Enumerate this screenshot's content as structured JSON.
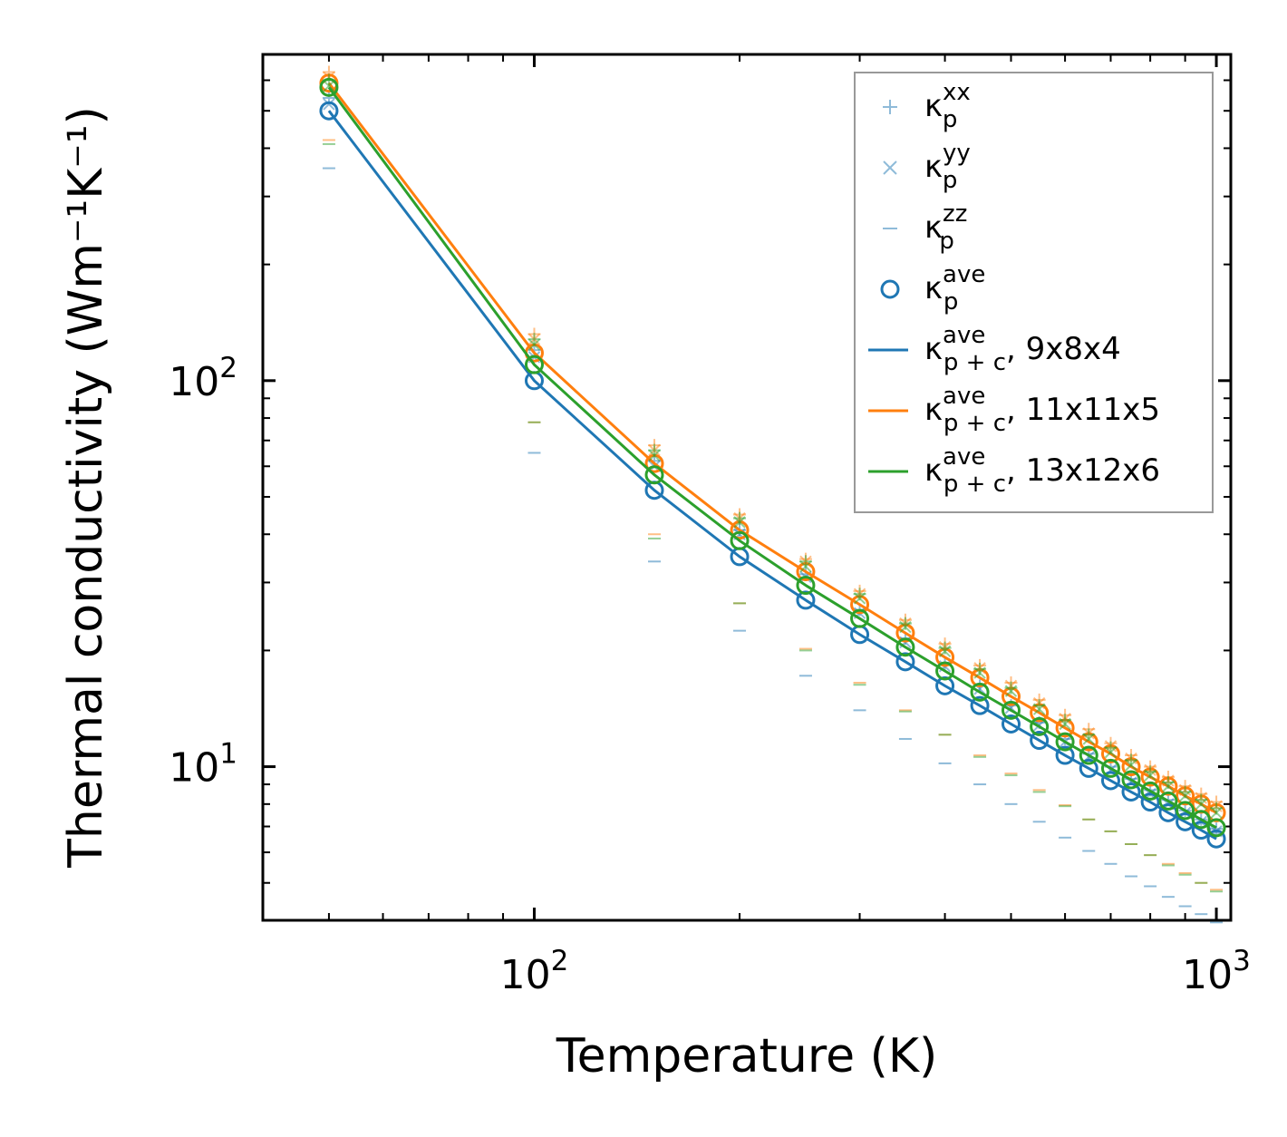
{
  "chart_data": {
    "type": "scatter",
    "title": "",
    "xlabel": "Temperature (K)",
    "ylabel": "Thermal conductivity (Wm⁻¹K⁻¹)",
    "xscale": "log",
    "yscale": "log",
    "xlim": [
      40,
      1050
    ],
    "ylim": [
      4.0,
      700
    ],
    "xticks": [
      {
        "value": 100,
        "base": "10",
        "exp": "2"
      },
      {
        "value": 1000,
        "base": "10",
        "exp": "3"
      }
    ],
    "yticks": [
      {
        "value": 10,
        "base": "10",
        "exp": "1"
      },
      {
        "value": 100,
        "base": "10",
        "exp": "2"
      }
    ],
    "grid": false,
    "legend_position": "top-right",
    "x": [
      50,
      100,
      150,
      200,
      250,
      300,
      350,
      400,
      450,
      500,
      550,
      600,
      650,
      700,
      750,
      800,
      850,
      900,
      950,
      1000
    ],
    "series": [
      {
        "name": "9x8x4",
        "color": "#1f77b4",
        "kxx": [
          540,
          120,
          62,
          41,
          31.5,
          25.5,
          21.5,
          18.5,
          16.2,
          14.4,
          13.0,
          11.8,
          10.8,
          10.0,
          9.3,
          8.7,
          8.2,
          7.7,
          7.3,
          6.9
        ],
        "kyy": [
          520,
          115,
          60,
          40,
          31,
          25,
          21,
          18.2,
          15.9,
          14.2,
          12.8,
          11.6,
          10.6,
          9.8,
          9.1,
          8.5,
          8.0,
          7.6,
          7.2,
          6.8
        ],
        "kzz": [
          355,
          65,
          34,
          22.5,
          17.2,
          14.0,
          11.8,
          10.2,
          9.0,
          8.0,
          7.2,
          6.55,
          6.05,
          5.6,
          5.2,
          4.9,
          4.6,
          4.35,
          4.15,
          3.95
        ],
        "kave": [
          500,
          100,
          52,
          35,
          27,
          22,
          18.7,
          16.2,
          14.4,
          12.9,
          11.7,
          10.7,
          9.9,
          9.2,
          8.6,
          8.1,
          7.6,
          7.2,
          6.85,
          6.5
        ],
        "kave_pc": [
          500,
          100,
          52,
          35,
          27,
          22,
          18.7,
          16.2,
          14.4,
          12.9,
          11.7,
          10.7,
          9.9,
          9.2,
          8.6,
          8.1,
          7.6,
          7.2,
          6.85,
          6.5
        ]
      },
      {
        "name": "11x11x5",
        "color": "#ff7f0e",
        "kxx": [
          630,
          132,
          68,
          45,
          34.5,
          28.5,
          24,
          20.8,
          18.3,
          16.5,
          14.9,
          13.6,
          12.5,
          11.5,
          10.7,
          10.0,
          9.4,
          8.9,
          8.5,
          8.1
        ],
        "kyy": [
          610,
          128,
          66,
          44,
          34,
          28,
          23.5,
          20.4,
          18.0,
          16.2,
          14.6,
          13.3,
          12.2,
          11.3,
          10.5,
          9.8,
          9.2,
          8.7,
          8.3,
          7.9
        ],
        "kzz": [
          420,
          78,
          40,
          26.5,
          20.2,
          16.5,
          14.0,
          12.1,
          10.7,
          9.6,
          8.7,
          7.95,
          7.3,
          6.8,
          6.3,
          5.9,
          5.6,
          5.3,
          5.0,
          4.8
        ],
        "kave": [
          590,
          118,
          61,
          41,
          32,
          26.3,
          22.2,
          19.2,
          17.0,
          15.2,
          13.8,
          12.6,
          11.6,
          10.8,
          10.0,
          9.4,
          8.9,
          8.4,
          8.0,
          7.6
        ],
        "kave_pc": [
          590,
          118,
          61,
          41,
          32,
          26.3,
          22.2,
          19.2,
          17.0,
          15.2,
          13.8,
          12.6,
          11.6,
          10.8,
          10.0,
          9.4,
          8.9,
          8.4,
          8.0,
          7.6
        ]
      },
      {
        "name": "13x12x6",
        "color": "#2ca02c",
        "kxx": [
          600,
          128,
          66,
          44,
          34,
          28,
          23.5,
          20.3,
          17.9,
          16.0,
          14.4,
          13.2,
          12.1,
          11.2,
          10.4,
          9.7,
          9.1,
          8.6,
          8.2,
          7.8
        ],
        "kyy": [
          580,
          124,
          64,
          43,
          33,
          27.3,
          23,
          19.9,
          17.5,
          15.7,
          14.1,
          12.9,
          11.8,
          10.9,
          10.1,
          9.5,
          8.9,
          8.4,
          8.0,
          7.6
        ],
        "kzz": [
          410,
          78,
          39,
          26.5,
          20,
          16.3,
          13.9,
          12.1,
          10.6,
          9.5,
          8.6,
          7.9,
          7.3,
          6.8,
          6.3,
          5.9,
          5.55,
          5.25,
          5.0,
          4.75
        ],
        "kave": [
          575,
          110,
          57,
          38.5,
          29.5,
          24.2,
          20.4,
          17.7,
          15.6,
          14.0,
          12.7,
          11.6,
          10.7,
          9.9,
          9.25,
          8.65,
          8.15,
          7.7,
          7.3,
          6.95
        ],
        "kave_pc": [
          575,
          110,
          57,
          38.5,
          29.5,
          24.2,
          20.4,
          17.7,
          15.6,
          14.0,
          12.7,
          11.6,
          10.7,
          9.9,
          9.25,
          8.65,
          8.15,
          7.7,
          7.3,
          6.95
        ]
      }
    ],
    "legend": [
      {
        "marker": "plus",
        "base": "κ",
        "sup": "xx",
        "sub": "p",
        "suffix": "",
        "color": "#1f77b4"
      },
      {
        "marker": "cross",
        "base": "κ",
        "sup": "yy",
        "sub": "p",
        "suffix": "",
        "color": "#1f77b4"
      },
      {
        "marker": "dash",
        "base": "κ",
        "sup": "zz",
        "sub": "p",
        "suffix": "",
        "color": "#1f77b4"
      },
      {
        "marker": "circle",
        "base": "κ",
        "sup": "ave",
        "sub": "p",
        "suffix": "",
        "color": "#1f77b4"
      },
      {
        "marker": "line",
        "base": "κ",
        "sup": "ave",
        "sub": "p + c",
        "suffix": ", 9x8x4",
        "color": "#1f77b4"
      },
      {
        "marker": "line",
        "base": "κ",
        "sup": "ave",
        "sub": "p + c",
        "suffix": ", 11x11x5",
        "color": "#ff7f0e"
      },
      {
        "marker": "line",
        "base": "κ",
        "sup": "ave",
        "sub": "p + c",
        "suffix": ", 13x12x6",
        "color": "#2ca02c"
      }
    ]
  }
}
